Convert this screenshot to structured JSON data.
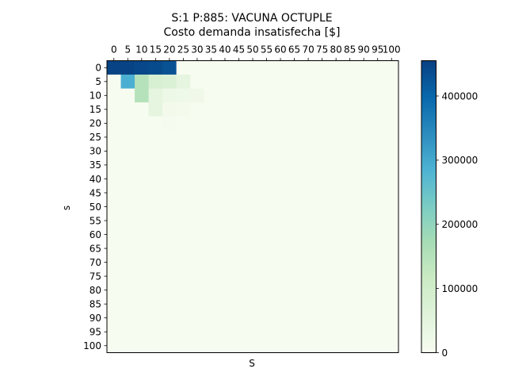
{
  "chart_data": {
    "type": "heatmap",
    "title": "S:1 P:885: VACUNA OCTUPLE",
    "subtitle": "Costo demanda insatisfecha [$]",
    "xlabel": "S",
    "ylabel": "s",
    "x_ticks": [
      "0",
      "5",
      "10",
      "15",
      "20",
      "25",
      "30",
      "35",
      "40",
      "45",
      "50",
      "55",
      "60",
      "65",
      "70",
      "75",
      "80",
      "85",
      "90",
      "95",
      "100"
    ],
    "y_ticks": [
      "0",
      "5",
      "10",
      "15",
      "20",
      "25",
      "30",
      "35",
      "40",
      "45",
      "50",
      "55",
      "60",
      "65",
      "70",
      "75",
      "80",
      "85",
      "90",
      "95",
      "100"
    ],
    "grid": false,
    "colormap": "GnBu",
    "colorbar": {
      "min": 0,
      "max": 455000,
      "ticks": [
        0,
        100000,
        200000,
        300000,
        400000
      ],
      "tick_labels": [
        "0",
        "100000",
        "200000",
        "300000",
        "400000"
      ],
      "colors": [
        "#f7fcf0",
        "#e0f3db",
        "#ccebc5",
        "#a8ddb5",
        "#7bccc4",
        "#4eb3d3",
        "#2b8cbe",
        "#0868ac",
        "#084081"
      ]
    },
    "grid_size": 21,
    "default_value": 0,
    "cells": [
      {
        "s": 0,
        "S": 0,
        "value": 450000
      },
      {
        "s": 0,
        "S": 5,
        "value": 450000
      },
      {
        "s": 0,
        "S": 10,
        "value": 445000
      },
      {
        "s": 0,
        "S": 15,
        "value": 440000
      },
      {
        "s": 0,
        "S": 20,
        "value": 430000
      },
      {
        "s": 5,
        "S": 5,
        "value": 290000
      },
      {
        "s": 5,
        "S": 10,
        "value": 150000
      },
      {
        "s": 5,
        "S": 15,
        "value": 80000
      },
      {
        "s": 5,
        "S": 20,
        "value": 70000
      },
      {
        "s": 5,
        "S": 25,
        "value": 45000
      },
      {
        "s": 10,
        "S": 10,
        "value": 150000
      },
      {
        "s": 10,
        "S": 15,
        "value": 45000
      },
      {
        "s": 10,
        "S": 20,
        "value": 25000
      },
      {
        "s": 10,
        "S": 25,
        "value": 20000
      },
      {
        "s": 10,
        "S": 30,
        "value": 18000
      },
      {
        "s": 15,
        "S": 15,
        "value": 45000
      },
      {
        "s": 15,
        "S": 20,
        "value": 10000
      },
      {
        "s": 15,
        "S": 25,
        "value": 8000
      },
      {
        "s": 20,
        "S": 20,
        "value": 6000
      }
    ]
  }
}
